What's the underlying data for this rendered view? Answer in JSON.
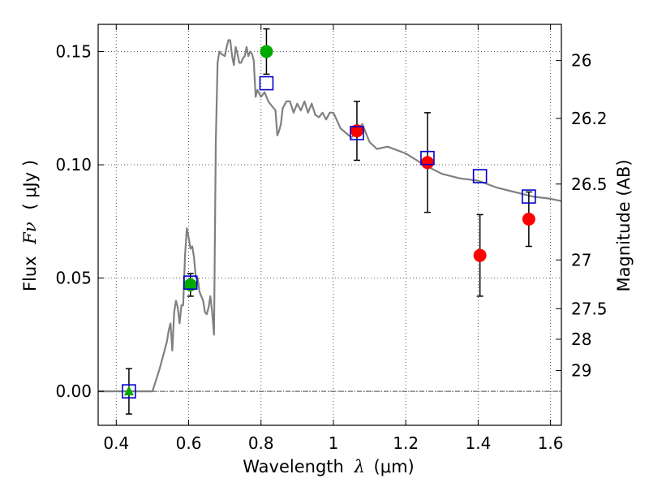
{
  "chart_data": {
    "type": "scatter",
    "xlabel_text": "Wavelength",
    "xlabel_symbol": "λ",
    "xlabel_unit": "(μm)",
    "ylabel_text": "Flux",
    "ylabel_symbol": "Fν",
    "ylabel_unit": "( μJy )",
    "ylabel_right": "Magnitude (AB)",
    "xlim": [
      0.35,
      1.63
    ],
    "ylim": [
      -0.015,
      0.162
    ],
    "grid": true,
    "x_ticks": [
      0.4,
      0.6,
      0.8,
      1.0,
      1.2,
      1.4,
      1.6
    ],
    "x_tick_labels": [
      "0.4",
      "0.6",
      "0.8",
      "1",
      "1.2",
      "1.4",
      "1.6"
    ],
    "y_ticks": [
      0.0,
      0.05,
      0.1,
      0.15
    ],
    "y_tick_labels": [
      "0.00",
      "0.05",
      "0.10",
      "0.15"
    ],
    "right_ticks": [
      {
        "flux": 0.146,
        "label": "26"
      },
      {
        "flux": 0.1205,
        "label": "26.2"
      },
      {
        "flux": 0.0915,
        "label": "26.5"
      },
      {
        "flux": 0.058,
        "label": "27"
      },
      {
        "flux": 0.0365,
        "label": "27.5"
      },
      {
        "flux": 0.023,
        "label": "28"
      },
      {
        "flux": 0.0092,
        "label": "29"
      }
    ],
    "colors": {
      "model_line": "#808080",
      "green_points": "#00aa00",
      "red_points": "#ff0000",
      "squares": "#0000cc",
      "errorbar": "#000000",
      "zero_line": "#555555",
      "grid": "#555555"
    },
    "series": [
      {
        "kind": "line",
        "x": [
          0.35,
          0.5,
          0.51,
          0.52,
          0.53,
          0.54,
          0.545,
          0.55,
          0.555,
          0.56,
          0.565,
          0.57,
          0.575,
          0.58,
          0.585,
          0.59,
          0.595,
          0.6,
          0.605,
          0.61,
          0.615,
          0.62,
          0.625,
          0.63,
          0.635,
          0.64,
          0.645,
          0.65,
          0.655,
          0.66,
          0.665,
          0.67,
          0.675,
          0.68,
          0.685,
          0.69,
          0.7,
          0.705,
          0.71,
          0.715,
          0.72,
          0.725,
          0.73,
          0.735,
          0.74,
          0.745,
          0.75,
          0.755,
          0.76,
          0.765,
          0.77,
          0.775,
          0.78,
          0.785,
          0.79,
          0.8,
          0.81,
          0.82,
          0.83,
          0.84,
          0.845,
          0.85,
          0.855,
          0.86,
          0.87,
          0.88,
          0.89,
          0.9,
          0.91,
          0.92,
          0.93,
          0.94,
          0.95,
          0.96,
          0.97,
          0.98,
          0.99,
          1.0,
          1.02,
          1.05,
          1.08,
          1.1,
          1.12,
          1.15,
          1.2,
          1.25,
          1.3,
          1.35,
          1.4,
          1.45,
          1.5,
          1.55,
          1.6,
          1.63
        ],
        "values": [
          0.0,
          0.0,
          0.005,
          0.01,
          0.016,
          0.022,
          0.027,
          0.03,
          0.018,
          0.035,
          0.04,
          0.037,
          0.03,
          0.038,
          0.038,
          0.06,
          0.072,
          0.068,
          0.063,
          0.064,
          0.059,
          0.05,
          0.05,
          0.044,
          0.042,
          0.04,
          0.035,
          0.034,
          0.037,
          0.042,
          0.035,
          0.025,
          0.11,
          0.145,
          0.15,
          0.149,
          0.148,
          0.152,
          0.155,
          0.155,
          0.148,
          0.144,
          0.152,
          0.149,
          0.145,
          0.145,
          0.147,
          0.148,
          0.152,
          0.148,
          0.15,
          0.149,
          0.146,
          0.13,
          0.133,
          0.13,
          0.132,
          0.128,
          0.126,
          0.124,
          0.113,
          0.115,
          0.118,
          0.125,
          0.128,
          0.128,
          0.123,
          0.127,
          0.124,
          0.128,
          0.123,
          0.127,
          0.122,
          0.121,
          0.123,
          0.12,
          0.123,
          0.123,
          0.116,
          0.112,
          0.118,
          0.11,
          0.107,
          0.108,
          0.105,
          0.1,
          0.096,
          0.094,
          0.093,
          0.09,
          0.088,
          0.086,
          0.085,
          0.084
        ]
      },
      {
        "kind": "errorbar",
        "x": [
          0.435,
          0.605,
          0.815,
          1.065,
          1.26,
          1.405,
          1.54
        ],
        "values": [
          0.0,
          0.047,
          0.15,
          0.115,
          0.101,
          0.06,
          0.076
        ],
        "err": [
          0.01,
          0.005,
          0.01,
          0.013,
          0.022,
          0.018,
          0.012
        ]
      },
      {
        "kind": "markers",
        "marker": "triangle",
        "color_key": "green_points",
        "x": [
          0.435
        ],
        "values": [
          0.0
        ]
      },
      {
        "kind": "markers",
        "marker": "circle",
        "color_key": "green_points",
        "x": [
          0.605,
          0.815
        ],
        "values": [
          0.047,
          0.15
        ]
      },
      {
        "kind": "markers",
        "marker": "circle",
        "color_key": "red_points",
        "x": [
          1.065,
          1.26,
          1.405,
          1.54
        ],
        "values": [
          0.115,
          0.101,
          0.06,
          0.076
        ]
      },
      {
        "kind": "markers",
        "marker": "square",
        "color_key": "squares",
        "x": [
          0.435,
          0.605,
          0.815,
          1.065,
          1.26,
          1.405,
          1.54
        ],
        "values": [
          0.0,
          0.048,
          0.136,
          0.114,
          0.103,
          0.095,
          0.086
        ]
      }
    ]
  }
}
